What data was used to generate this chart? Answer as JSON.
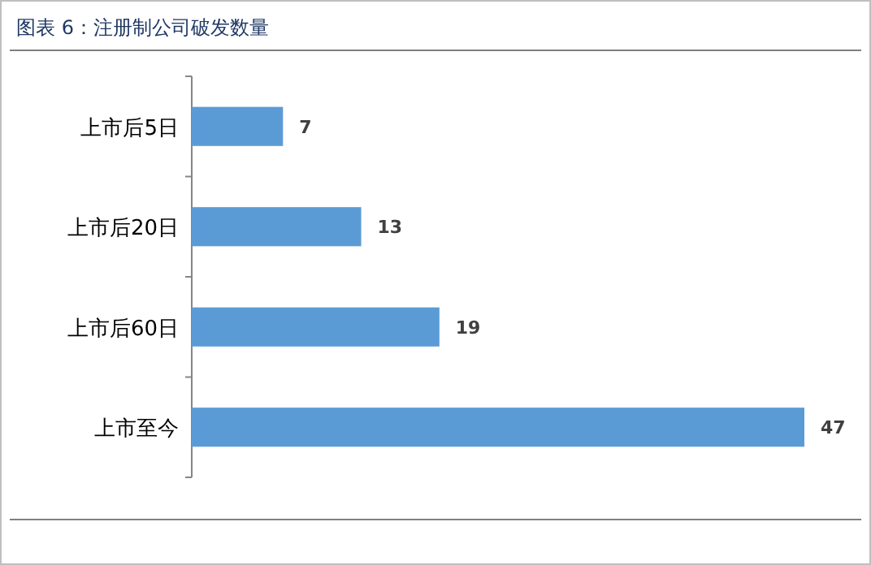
{
  "chart_data": {
    "type": "bar",
    "orientation": "horizontal",
    "title": "图表 6：注册制公司破发数量",
    "categories": [
      "上市后5日",
      "上市后20日",
      "上市后60日",
      "上市至今"
    ],
    "values": [
      7,
      13,
      19,
      47
    ],
    "color": "#5b9bd5",
    "data_labels": true
  }
}
